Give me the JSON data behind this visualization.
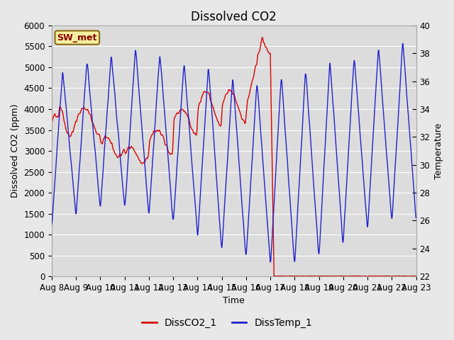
{
  "title": "Dissolved CO2",
  "ylabel_left": "Dissolved CO2 (ppm)",
  "ylabel_right": "Temperature",
  "xlabel": "Time",
  "ylim_left": [
    0,
    6000
  ],
  "ylim_right": [
    22,
    40
  ],
  "xlim": [
    0,
    15
  ],
  "xtick_labels": [
    "Aug 8",
    "Aug 9",
    "Aug 10",
    "Aug 11",
    "Aug 12",
    "Aug 13",
    "Aug 14",
    "Aug 15",
    "Aug 16",
    "Aug 17",
    "Aug 18",
    "Aug 19",
    "Aug 20",
    "Aug 21",
    "Aug 22",
    "Aug 23"
  ],
  "legend_labels": [
    "DissCO2_1",
    "DissTemp_1"
  ],
  "station_label": "SW_met",
  "fig_bg_color": "#e8e8e8",
  "plot_bg_color": "#e8e8e8",
  "axes_bg_color": "#dcdcdc",
  "grid_color": "#f0f0f0",
  "co2_color": "#dd0000",
  "temp_color": "#2222cc",
  "title_fontsize": 12,
  "axis_fontsize": 9,
  "tick_fontsize": 8.5,
  "legend_fontsize": 10
}
